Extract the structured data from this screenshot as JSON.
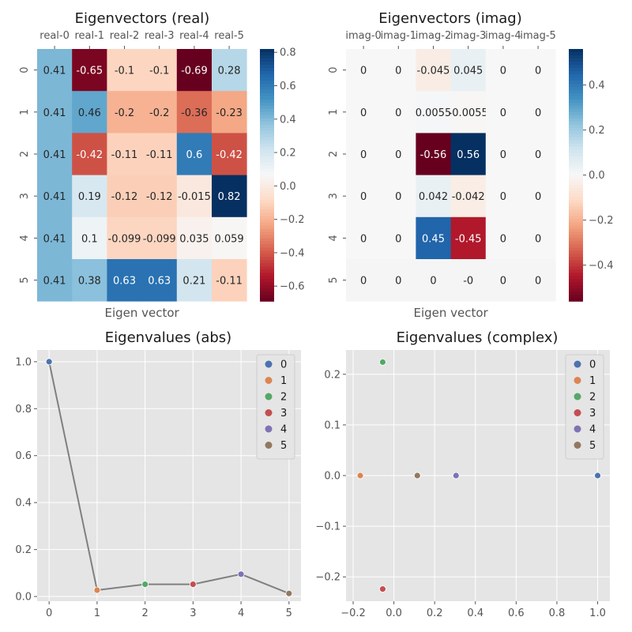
{
  "figure": {
    "background": "#ffffff"
  },
  "chart_data": [
    {
      "type": "heatmap",
      "title": "Eigenvectors (real)",
      "xlabel": "Eigen vector",
      "columns": [
        "real-0",
        "real-1",
        "real-2",
        "real-3",
        "real-4",
        "real-5"
      ],
      "rows": [
        "0",
        "1",
        "2",
        "3",
        "4",
        "5"
      ],
      "values": [
        [
          0.41,
          -0.65,
          -0.1,
          -0.1,
          -0.69,
          0.28
        ],
        [
          0.41,
          0.46,
          -0.2,
          -0.2,
          -0.36,
          -0.23
        ],
        [
          0.41,
          -0.42,
          -0.11,
          -0.11,
          0.6,
          -0.42
        ],
        [
          0.41,
          0.19,
          -0.12,
          -0.12,
          -0.015,
          0.82
        ],
        [
          0.41,
          0.1,
          -0.099,
          -0.099,
          0.035,
          0.059
        ],
        [
          0.41,
          0.38,
          0.63,
          0.63,
          0.21,
          -0.11
        ]
      ],
      "labels": [
        [
          "0.41",
          "-0.65",
          "-0.1",
          "-0.1",
          "-0.69",
          "0.28"
        ],
        [
          "0.41",
          "0.46",
          "-0.2",
          "-0.2",
          "-0.36",
          "-0.23"
        ],
        [
          "0.41",
          "-0.42",
          "-0.11",
          "-0.11",
          "0.6",
          "-0.42"
        ],
        [
          "0.41",
          "0.19",
          "-0.12",
          "-0.12",
          "-0.015",
          "0.82"
        ],
        [
          "0.41",
          "0.1",
          "-0.099",
          "-0.099",
          "0.035",
          "0.059"
        ],
        [
          "0.41",
          "0.38",
          "0.63",
          "0.63",
          "0.21",
          "-0.11"
        ]
      ],
      "colorbar": {
        "cmap": "RdBu",
        "vmin": -0.69,
        "vmax": 0.82,
        "ticks": [
          -0.6,
          -0.4,
          -0.2,
          0.0,
          0.2,
          0.4,
          0.6,
          0.8
        ],
        "tick_labels": [
          "−0.6",
          "−0.4",
          "−0.2",
          "0.0",
          "0.2",
          "0.4",
          "0.6",
          "0.8"
        ]
      },
      "nan_cells": []
    },
    {
      "type": "heatmap",
      "title": "Eigenvectors (imag)",
      "xlabel": "Eigen vector",
      "columns": [
        "imag-0",
        "imag-1",
        "imag-2",
        "imag-3",
        "imag-4",
        "imag-5"
      ],
      "rows": [
        "0",
        "1",
        "2",
        "3",
        "4",
        "5"
      ],
      "values": [
        [
          0,
          0,
          -0.045,
          0.045,
          0,
          0
        ],
        [
          0,
          0,
          0.0055,
          -0.0055,
          0,
          0
        ],
        [
          0,
          0,
          -0.56,
          0.56,
          0,
          0
        ],
        [
          0,
          0,
          0.042,
          -0.042,
          0,
          0
        ],
        [
          0,
          0,
          0.45,
          -0.45,
          0,
          0
        ],
        [
          0,
          0,
          0,
          0,
          0,
          0
        ]
      ],
      "labels": [
        [
          "0",
          "0",
          "-0.045",
          "0.045",
          "0",
          "0"
        ],
        [
          "0",
          "0",
          "0.0055",
          "-0.0055",
          "0",
          "0"
        ],
        [
          "0",
          "0",
          "-0.56",
          "0.56",
          "0",
          "0"
        ],
        [
          "0",
          "0",
          "0.042",
          "-0.042",
          "0",
          "0"
        ],
        [
          "0",
          "0",
          "0.45",
          "-0.45",
          "0",
          "0"
        ],
        [
          "0",
          "0",
          "0",
          "-0",
          "0",
          "0"
        ]
      ],
      "colorbar": {
        "cmap": "RdBu",
        "vmin": -0.56,
        "vmax": 0.56,
        "ticks": [
          -0.4,
          -0.2,
          0.0,
          0.2,
          0.4
        ],
        "tick_labels": [
          "−0.4",
          "−0.2",
          "0.0",
          "0.2",
          "0.4"
        ]
      },
      "nan_cells": [
        [
          5,
          0
        ],
        [
          5,
          1
        ],
        [
          5,
          2
        ],
        [
          5,
          3
        ],
        [
          5,
          4
        ],
        [
          5,
          5
        ]
      ]
    },
    {
      "type": "line",
      "title": "Eigenvalues (abs)",
      "x": [
        0,
        1,
        2,
        3,
        4,
        5
      ],
      "y": [
        1.0,
        0.027,
        0.052,
        0.052,
        0.095,
        0.013
      ],
      "xlim": [
        -0.25,
        5.25
      ],
      "ylim": [
        -0.02,
        1.05
      ],
      "xticks": [
        0,
        1,
        2,
        3,
        4,
        5
      ],
      "yticks": [
        0.0,
        0.2,
        0.4,
        0.6,
        0.8,
        1.0
      ],
      "ytick_labels": [
        "0.0",
        "0.2",
        "0.4",
        "0.6",
        "0.8",
        "1.0"
      ],
      "line_color": "#808080",
      "grid": true,
      "legend": {
        "placement": "top-right",
        "entries": [
          "0",
          "1",
          "2",
          "3",
          "4",
          "5"
        ]
      }
    },
    {
      "type": "scatter",
      "title": "Eigenvalues (complex)",
      "x": [
        1.0,
        -0.165,
        -0.055,
        -0.055,
        0.305,
        0.115
      ],
      "y": [
        0.0,
        0.0,
        0.224,
        -0.224,
        0.0,
        0.0
      ],
      "xlim": [
        -0.235,
        1.06
      ],
      "ylim": [
        -0.248,
        0.248
      ],
      "xticks": [
        -0.2,
        0.0,
        0.2,
        0.4,
        0.6,
        0.8,
        1.0
      ],
      "xtick_labels": [
        "−0.2",
        "0.0",
        "0.2",
        "0.4",
        "0.6",
        "0.8",
        "1.0"
      ],
      "yticks": [
        -0.2,
        -0.1,
        0.0,
        0.1,
        0.2
      ],
      "ytick_labels": [
        "−0.2",
        "−0.1",
        "0.0",
        "0.1",
        "0.2"
      ],
      "grid": true,
      "legend": {
        "placement": "top-right",
        "entries": [
          "0",
          "1",
          "2",
          "3",
          "4",
          "5"
        ]
      }
    }
  ],
  "palette": [
    "#4c72b0",
    "#dd8452",
    "#55a868",
    "#c44e52",
    "#8172b3",
    "#937860"
  ],
  "plot_bg": "#e5e5e5",
  "grid_color": "#ffffff",
  "nan_color": "#f5f5f5"
}
